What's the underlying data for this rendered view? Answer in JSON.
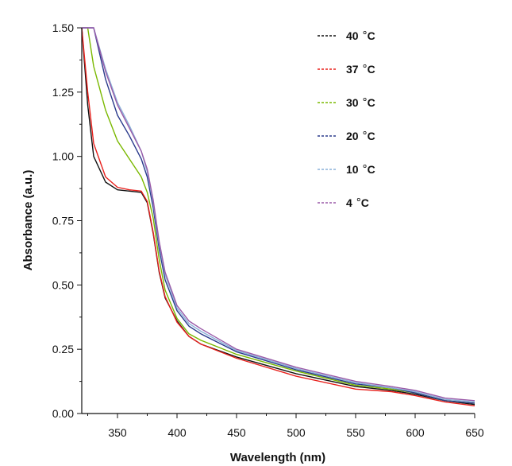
{
  "chart_data": {
    "type": "line",
    "title": "",
    "xlabel": "Wavelength (nm)",
    "ylabel": "Absorbance (a.u.)",
    "xlim": [
      320,
      650
    ],
    "ylim": [
      0.0,
      1.5
    ],
    "x_ticks": [
      350,
      400,
      450,
      500,
      550,
      600,
      650
    ],
    "y_ticks": [
      0.0,
      0.25,
      0.5,
      0.75,
      1.0,
      1.25,
      1.5
    ],
    "x_tick_labels": [
      "350",
      "400",
      "450",
      "500",
      "550",
      "600",
      "650"
    ],
    "y_tick_labels": [
      "0.00",
      "0.25",
      "0.50",
      "0.75",
      "1.00",
      "1.25",
      "1.50"
    ],
    "grid": false,
    "legend_position": "top-right",
    "legend_unit": "C",
    "x": [
      320,
      325,
      330,
      340,
      350,
      360,
      370,
      375,
      380,
      385,
      390,
      400,
      410,
      420,
      450,
      500,
      550,
      580,
      600,
      625,
      650
    ],
    "series": [
      {
        "name": "40",
        "color": "#111111",
        "values": [
          1.5,
          1.2,
          1.0,
          0.9,
          0.87,
          0.865,
          0.86,
          0.82,
          0.7,
          0.55,
          0.45,
          0.36,
          0.3,
          0.27,
          0.22,
          0.155,
          0.105,
          0.09,
          0.075,
          0.05,
          0.035
        ]
      },
      {
        "name": "37",
        "color": "#e8201c",
        "values": [
          1.5,
          1.25,
          1.05,
          0.92,
          0.88,
          0.87,
          0.865,
          0.825,
          0.705,
          0.555,
          0.455,
          0.355,
          0.3,
          0.27,
          0.215,
          0.145,
          0.095,
          0.085,
          0.07,
          0.045,
          0.03
        ]
      },
      {
        "name": "30",
        "color": "#7ab800",
        "values": [
          1.5,
          1.5,
          1.35,
          1.18,
          1.06,
          0.99,
          0.92,
          0.86,
          0.76,
          0.6,
          0.48,
          0.37,
          0.31,
          0.285,
          0.23,
          0.165,
          0.11,
          0.095,
          0.08,
          0.05,
          0.04
        ]
      },
      {
        "name": "20",
        "color": "#2a3a8c",
        "values": [
          1.5,
          1.5,
          1.5,
          1.3,
          1.16,
          1.08,
          0.99,
          0.92,
          0.8,
          0.64,
          0.52,
          0.4,
          0.34,
          0.31,
          0.24,
          0.17,
          0.115,
          0.1,
          0.08,
          0.05,
          0.04
        ]
      },
      {
        "name": "10",
        "color": "#8ab0d8",
        "values": [
          1.5,
          1.5,
          1.5,
          1.34,
          1.21,
          1.12,
          1.02,
          0.94,
          0.82,
          0.66,
          0.54,
          0.41,
          0.35,
          0.32,
          0.245,
          0.175,
          0.12,
          0.1,
          0.085,
          0.055,
          0.045
        ]
      },
      {
        "name": "4",
        "color": "#9a5aa8",
        "values": [
          1.5,
          1.5,
          1.5,
          1.33,
          1.2,
          1.11,
          1.02,
          0.95,
          0.83,
          0.67,
          0.55,
          0.42,
          0.36,
          0.33,
          0.25,
          0.18,
          0.125,
          0.105,
          0.09,
          0.06,
          0.05
        ]
      }
    ]
  }
}
